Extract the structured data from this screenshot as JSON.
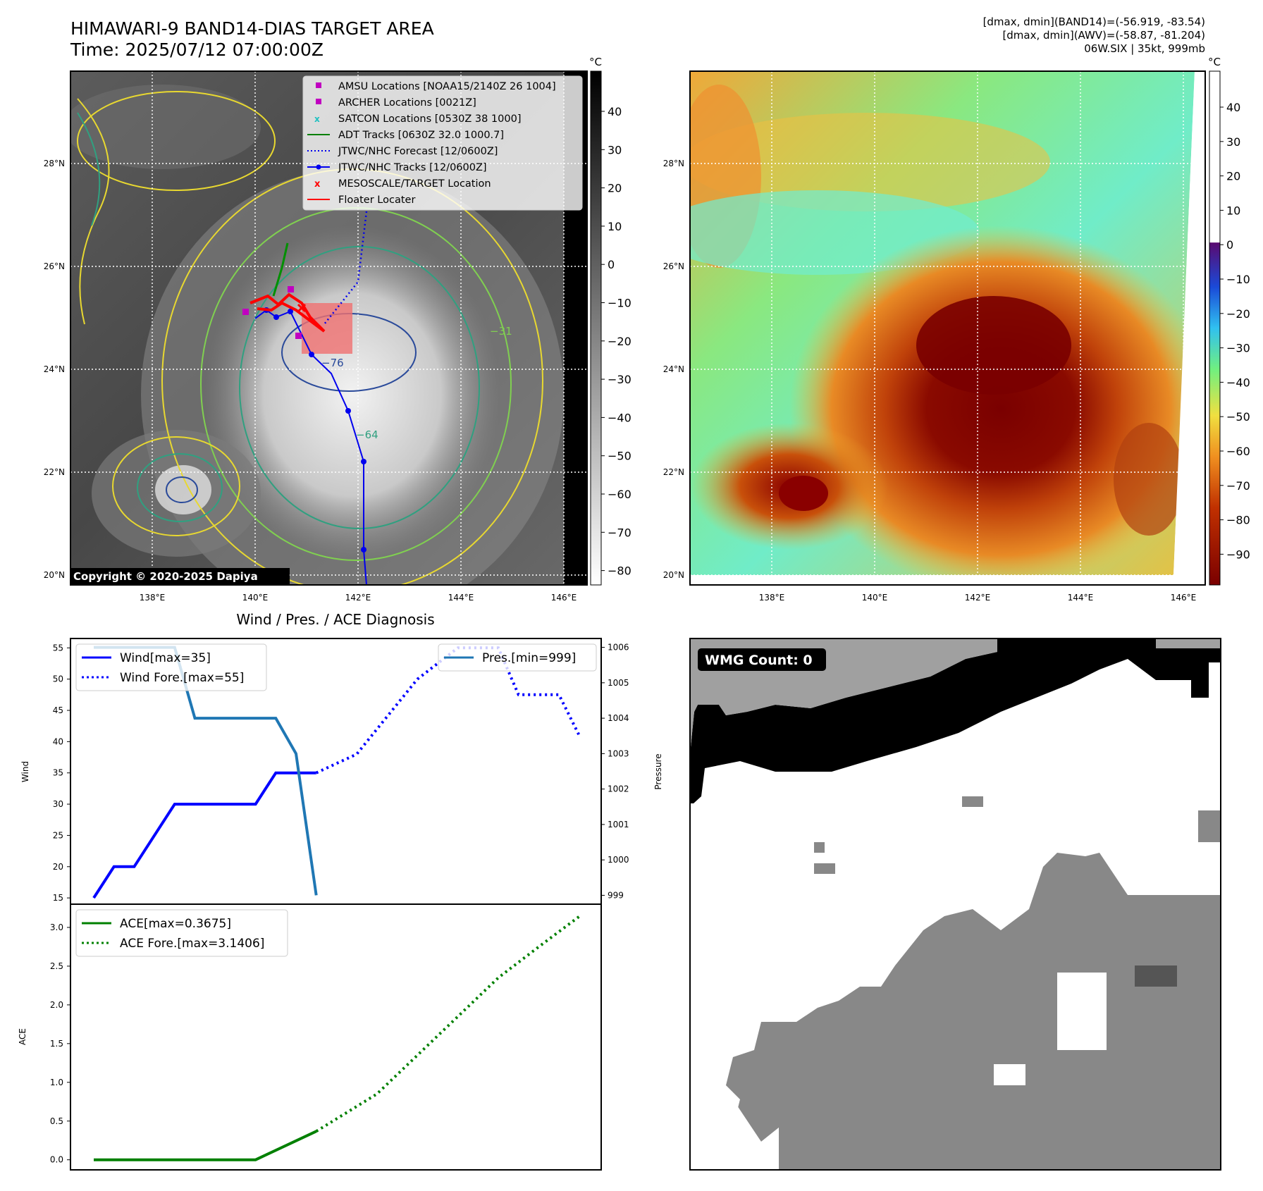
{
  "header": {
    "title_line1": "HIMAWARI-9 BAND14-DIAS TARGET AREA",
    "title_line2": "Time: 2025/07/12 07:00:00Z",
    "stat_line1": "[dmax, dmin](BAND14)=(-56.919, -83.54)",
    "stat_line2": "[dmax, dmin](AWV)=(-58.87, -81.204)",
    "stat_line3": "06W.SIX | 35kt, 999mb"
  },
  "ir_panel": {
    "lat_labels": [
      "28°N",
      "26°N",
      "24°N",
      "22°N",
      "20°N"
    ],
    "lon_labels": [
      "138°E",
      "140°E",
      "142°E",
      "144°E",
      "146°E"
    ],
    "copyright": "Copyright © 2020-2025 Dapiya",
    "contour_labels": [
      "−76",
      "−64",
      "−31"
    ],
    "colorbar": {
      "unit": "°C",
      "ticks": [
        "40",
        "30",
        "20",
        "10",
        "0",
        "−10",
        "−20",
        "−30",
        "−40",
        "−50",
        "−60",
        "−70",
        "−80"
      ]
    },
    "legend": [
      {
        "label": "AMSU Locations [NOAA15/2140Z 26 1004]",
        "color": "#c000c0",
        "marker": "square"
      },
      {
        "label": "ARCHER Locations [0021Z]",
        "color": "#c000c0",
        "marker": "square"
      },
      {
        "label": "SATCON Locations [0530Z 38 1000]",
        "color": "#20c0c0",
        "marker": "x"
      },
      {
        "label": "ADT Tracks [0630Z 32.0 1000.7]",
        "color": "#008000",
        "marker": "line"
      },
      {
        "label": "JTWC/NHC Forecast [12/0600Z]",
        "color": "#0000ee",
        "marker": "dotted"
      },
      {
        "label": "JTWC/NHC Tracks [12/0600Z]",
        "color": "#0000ee",
        "marker": "line-dot"
      },
      {
        "label": "MESOSCALE/TARGET Location",
        "color": "#ff0000",
        "marker": "x"
      },
      {
        "label": "Floater Locater",
        "color": "#ff0000",
        "marker": "line"
      }
    ]
  },
  "wv_panel": {
    "lat_labels": [
      "28°N",
      "26°N",
      "24°N",
      "22°N",
      "20°N"
    ],
    "lon_labels": [
      "138°E",
      "140°E",
      "142°E",
      "144°E",
      "146°E"
    ],
    "colorbar": {
      "unit": "°C",
      "ticks": [
        "40",
        "30",
        "20",
        "10",
        "0",
        "−10",
        "−20",
        "−30",
        "−40",
        "−50",
        "−60",
        "−70",
        "−80",
        "−90"
      ]
    }
  },
  "wmg_panel": {
    "label": "WMG Count: 0"
  },
  "chart_data": [
    {
      "type": "line",
      "title": "Wind / Pres. / ACE Diagnosis",
      "ylabel": "Wind",
      "y2label": "Pressure",
      "ylim": [
        14,
        56.5
      ],
      "y2lim": [
        998.75,
        1006.25
      ],
      "yticks": [
        15,
        20,
        25,
        30,
        35,
        40,
        45,
        50,
        55
      ],
      "y2ticks": [
        999,
        1000,
        1001,
        1002,
        1003,
        1004,
        1005,
        1006
      ],
      "series": [
        {
          "name": "Wind[max=35]",
          "color": "#0000ff",
          "style": "solid",
          "values": [
            [
              0,
              15
            ],
            [
              1,
              20
            ],
            [
              2,
              20
            ],
            [
              4,
              30
            ],
            [
              8,
              30
            ],
            [
              9,
              35
            ],
            [
              11,
              35
            ]
          ]
        },
        {
          "name": "Wind Fore.[max=55]",
          "color": "#0000ff",
          "style": "dotted",
          "values": [
            [
              11,
              35
            ],
            [
              13,
              38
            ],
            [
              16,
              50
            ],
            [
              18,
              55
            ],
            [
              20,
              55
            ],
            [
              21,
              47.5
            ],
            [
              23,
              47.5
            ],
            [
              24,
              41
            ]
          ]
        },
        {
          "name": "Pres.[min=999]",
          "color": "#1f77b4",
          "style": "solid",
          "axis": "right",
          "values": [
            [
              0,
              1006
            ],
            [
              4,
              1006
            ],
            [
              5,
              1004
            ],
            [
              9,
              1004
            ],
            [
              10,
              1003
            ],
            [
              11,
              999
            ]
          ]
        }
      ]
    },
    {
      "type": "line",
      "ylabel": "ACE",
      "ylim": [
        -0.13,
        3.3
      ],
      "yticks": [
        0.0,
        0.5,
        1.0,
        1.5,
        2.0,
        2.5,
        3.0
      ],
      "ytick_labels": [
        "0.0",
        "0.5",
        "1.0",
        "1.5",
        "2.0",
        "2.5",
        "3.0"
      ],
      "series": [
        {
          "name": "ACE[max=0.3675]",
          "color": "#008000",
          "style": "solid",
          "values": [
            [
              0,
              0
            ],
            [
              8,
              0
            ],
            [
              11,
              0.3675
            ]
          ]
        },
        {
          "name": "ACE Fore.[max=3.1406]",
          "color": "#008000",
          "style": "dotted",
          "values": [
            [
              11,
              0.3675
            ],
            [
              14,
              0.85
            ],
            [
              17,
              1.6
            ],
            [
              20,
              2.35
            ],
            [
              22,
              2.75
            ],
            [
              24,
              3.1406
            ]
          ]
        }
      ]
    }
  ]
}
